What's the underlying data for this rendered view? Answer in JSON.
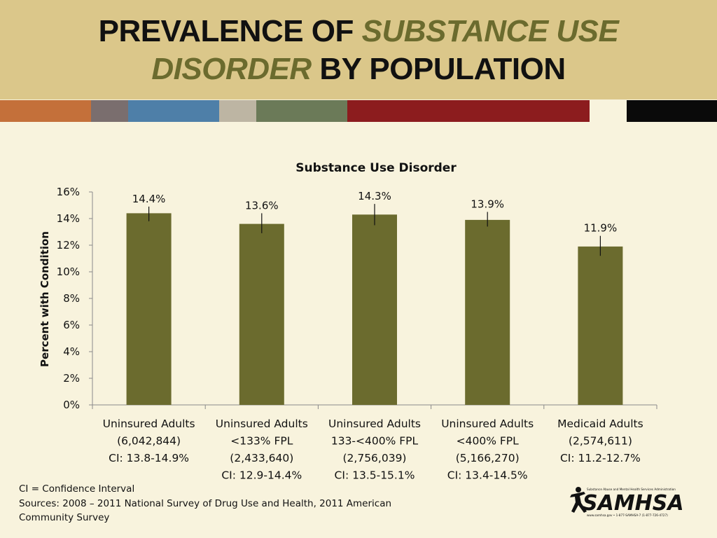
{
  "header": {
    "title_part1": "PREVALENCE OF ",
    "title_part2": "SUBSTANCE USE",
    "title_part3": "DISORDER",
    "title_part4": " BY POPULATION",
    "stripe_colors": [
      "#c4703a",
      "#7a6e6e",
      "#4e7fa8",
      "#bdb5a3",
      "#6b7a58",
      "#8c1c1e",
      "#f8f3dd",
      "#0a0a0a"
    ]
  },
  "chart_data": {
    "type": "bar",
    "title": "Substance Use Disorder",
    "ylabel": "Percent with Condition",
    "ylim": [
      0,
      16
    ],
    "yticks": [
      "0%",
      "2%",
      "4%",
      "6%",
      "8%",
      "10%",
      "12%",
      "14%",
      "16%"
    ],
    "bar_color": "#6b6b2e",
    "categories": [
      [
        "Uninsured Adults",
        "(6,042,844)",
        "CI: 13.8-14.9%"
      ],
      [
        "Uninsured Adults",
        "<133% FPL",
        "(2,433,640)",
        "CI: 12.9-14.4%"
      ],
      [
        "Uninsured Adults",
        "133-<400% FPL",
        "(2,756,039)",
        "CI: 13.5-15.1%"
      ],
      [
        "Uninsured Adults",
        "<400% FPL",
        "(5,166,270)",
        "CI: 13.4-14.5%"
      ],
      [
        "Medicaid Adults",
        "(2,574,611)",
        "CI: 11.2-12.7%"
      ]
    ],
    "values": [
      14.4,
      13.6,
      14.3,
      13.9,
      11.9
    ],
    "data_labels": [
      "14.4%",
      "13.6%",
      "14.3%",
      "13.9%",
      "11.9%"
    ],
    "ci": [
      [
        13.8,
        14.9
      ],
      [
        12.9,
        14.4
      ],
      [
        13.5,
        15.1
      ],
      [
        13.4,
        14.5
      ],
      [
        11.2,
        12.7
      ]
    ]
  },
  "footer": {
    "line1": "CI = Confidence Interval",
    "line2": "Sources: 2008 – 2011 National Survey of Drug Use and Health, 2011 American",
    "line3": "Community Survey"
  },
  "logo": {
    "name": "SAMHSA",
    "tagline": "Substance Abuse and Mental Health Services Administration",
    "contact": "www.samhsa.gov • 1-877-SAMHSA-7 (1-877-726-4727)"
  }
}
